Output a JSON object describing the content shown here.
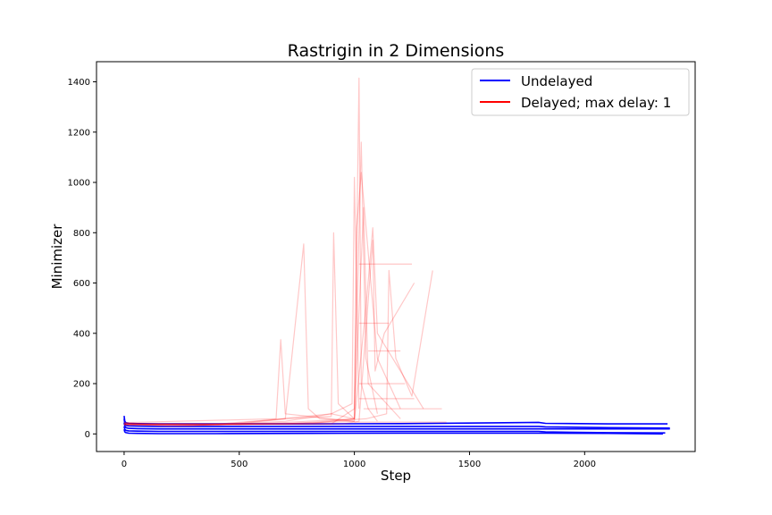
{
  "chart_data": {
    "type": "line",
    "title": "Rastrigin in 2 Dimensions",
    "xlabel": "Step",
    "ylabel": "Minimizer",
    "xlim": [
      -120,
      2480
    ],
    "ylim": [
      -70,
      1480
    ],
    "x_ticks": [
      0,
      500,
      1000,
      1500,
      2000
    ],
    "y_ticks": [
      0,
      200,
      400,
      600,
      800,
      1000,
      1200,
      1400
    ],
    "grid": false,
    "legend": {
      "position": "top-right",
      "entries": [
        {
          "label": "Undelayed",
          "color": "#0000ff"
        },
        {
          "label": "Delayed; max delay: 1",
          "color": "#ff0000"
        }
      ]
    },
    "series": [
      {
        "name": "Undelayed",
        "color": "#0000ff",
        "runs": [
          {
            "x": [
              0,
              3,
              8,
              20,
              60,
              150,
              400,
              800,
              1200,
              1600,
              1800,
              1830,
              2100,
              2360
            ],
            "y": [
              72,
              50,
              44,
              42,
              41,
              40,
              40,
              40,
              41,
              44,
              46,
              42,
              40,
              40
            ]
          },
          {
            "x": [
              0,
              3,
              8,
              20,
              60,
              150,
              400,
              800,
              1200,
              1600,
              1800,
              1830,
              2100,
              2370
            ],
            "y": [
              60,
              40,
              34,
              32,
              31,
              30,
              30,
              30,
              30,
              30,
              30,
              28,
              25,
              23
            ]
          },
          {
            "x": [
              0,
              3,
              8,
              20,
              60,
              150,
              400,
              800,
              1200,
              1600,
              1800,
              1830,
              2100,
              2370
            ],
            "y": [
              45,
              30,
              25,
              22,
              21,
              20,
              20,
              20,
              20,
              20,
              20,
              20,
              20,
              20
            ]
          },
          {
            "x": [
              0,
              3,
              8,
              20,
              60,
              150,
              400,
              800,
              1200,
              1600,
              1800,
              1830,
              2100,
              2350
            ],
            "y": [
              30,
              18,
              14,
              12,
              11,
              10,
              10,
              10,
              10,
              10,
              10,
              8,
              5,
              4
            ]
          },
          {
            "x": [
              0,
              3,
              8,
              20,
              60,
              150,
              400,
              800,
              1200,
              1600,
              1800,
              1830,
              2100,
              2340
            ],
            "y": [
              18,
              8,
              5,
              3,
              2,
              1,
              1,
              2,
              3,
              3,
              3,
              3,
              2,
              0
            ]
          }
        ]
      },
      {
        "name": "Delayed; max delay: 1",
        "color": "#ff0000",
        "runs": [
          {
            "x": [
              0,
              100,
              300,
              500,
              700,
              900,
              1000,
              1020,
              1030,
              1060,
              1100
            ],
            "y": [
              45,
              38,
              35,
              40,
              50,
              80,
              60,
              1415,
              200,
              100,
              50
            ]
          },
          {
            "x": [
              0,
              200,
              500,
              700,
              780,
              800,
              850,
              1000
            ],
            "y": [
              40,
              30,
              40,
              60,
              755,
              100,
              60,
              50
            ]
          },
          {
            "x": [
              0,
              300,
              700,
              900,
              910,
              930,
              1000
            ],
            "y": [
              38,
              32,
              60,
              70,
              800,
              120,
              60
            ]
          },
          {
            "x": [
              0,
              400,
              900,
              990,
              1000,
              1020
            ],
            "y": [
              42,
              34,
              80,
              120,
              1020,
              100
            ]
          },
          {
            "x": [
              0,
              500,
              1000,
              1030,
              1050,
              1100
            ],
            "y": [
              36,
              36,
              60,
              1160,
              300,
              80
            ]
          },
          {
            "x": [
              0,
              600,
              1000,
              1050,
              1080,
              1100,
              1300
            ],
            "y": [
              40,
              38,
              50,
              500,
              820,
              400,
              100
            ]
          },
          {
            "x": [
              0,
              660,
              680,
              700,
              1000
            ],
            "y": [
              45,
              60,
              375,
              80,
              50
            ]
          },
          {
            "x": [
              0,
              700,
              1050,
              1140,
              1150,
              1180,
              1250,
              1340
            ],
            "y": [
              38,
              40,
              60,
              80,
              650,
              300,
              150,
              650
            ]
          },
          {
            "x": [
              0,
              800,
              1000,
              1040,
              1060,
              1200
            ],
            "y": [
              36,
              40,
              60,
              900,
              200,
              60
            ]
          },
          {
            "x": [
              0,
              900,
              1000,
              1010,
              1030,
              1100,
              1200
            ],
            "y": [
              40,
              40,
              100,
              820,
              1040,
              300,
              100
            ]
          },
          {
            "x": [
              0,
              950,
              1020,
              1080,
              1090,
              1130,
              1260
            ],
            "y": [
              40,
              40,
              50,
              770,
              250,
              400,
              600
            ]
          },
          {
            "x": [
              1020,
              1250
            ],
            "y": [
              675,
              675
            ]
          },
          {
            "x": [
              1020,
              1150
            ],
            "y": [
              440,
              440
            ]
          },
          {
            "x": [
              1060,
              1200
            ],
            "y": [
              330,
              330
            ]
          },
          {
            "x": [
              1020,
              1220
            ],
            "y": [
              200,
              200
            ]
          },
          {
            "x": [
              1020,
              1260
            ],
            "y": [
              140,
              140
            ]
          },
          {
            "x": [
              1040,
              1380
            ],
            "y": [
              100,
              100
            ]
          },
          {
            "x": [
              1000,
              1400
            ],
            "y": [
              47,
              47
            ]
          }
        ]
      }
    ]
  }
}
